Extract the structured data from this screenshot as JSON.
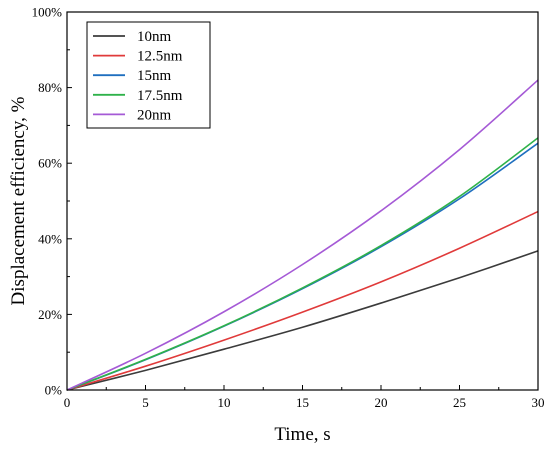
{
  "chart_data": {
    "type": "line",
    "title": "",
    "xlabel": "Time, s",
    "ylabel": "Displacement efficiency, %",
    "xlim": [
      0,
      30
    ],
    "ylim": [
      0,
      100
    ],
    "x_ticks": [
      0,
      5,
      10,
      15,
      20,
      25,
      30
    ],
    "y_ticks": [
      0,
      20,
      40,
      60,
      80,
      100
    ],
    "x_tick_labels": [
      "0",
      "5",
      "10",
      "15",
      "20",
      "25",
      "30"
    ],
    "y_tick_labels": [
      "0%",
      "20%",
      "40%",
      "60%",
      "80%",
      "100%"
    ],
    "grid": false,
    "legend_position": "top-left",
    "x": [
      0,
      5,
      10,
      15,
      20,
      25,
      30
    ],
    "series": [
      {
        "name": "10nm",
        "color": "#3b3b3b",
        "values": [
          0,
          5.2,
          10.8,
          16.6,
          23.0,
          29.7,
          36.8
        ]
      },
      {
        "name": "12.5nm",
        "color": "#e03a3a",
        "values": [
          0,
          6.3,
          13.2,
          20.6,
          28.6,
          37.5,
          47.2
        ]
      },
      {
        "name": "15nm",
        "color": "#1f6fbf",
        "values": [
          0,
          8.0,
          16.9,
          26.8,
          37.9,
          50.6,
          65.3
        ]
      },
      {
        "name": "17.5nm",
        "color": "#2fb24a",
        "values": [
          0,
          8.1,
          17.0,
          27.0,
          38.2,
          51.2,
          66.7
        ]
      },
      {
        "name": "20nm",
        "color": "#a55ad6",
        "values": [
          0,
          9.7,
          20.7,
          33.2,
          47.4,
          63.6,
          82.0
        ]
      }
    ]
  }
}
